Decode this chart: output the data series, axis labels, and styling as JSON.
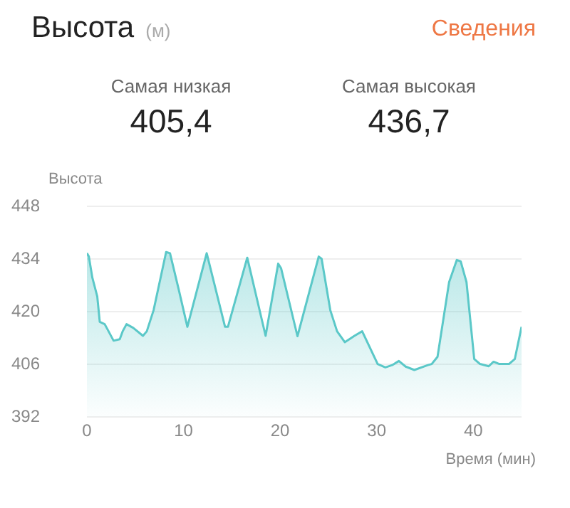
{
  "chart_data": {
    "type": "area",
    "title": "Высота",
    "subtitle": "(м)",
    "ylabel": "Высота",
    "xlabel": "Время (мин)",
    "annotations": [
      "Сведения",
      "Самая низкая",
      "405,4",
      "Самая высокая",
      "436,7"
    ],
    "x": [
      0,
      0.2,
      0.56,
      1.07,
      1.33,
      1.84,
      2.24,
      2.76,
      3.4,
      3.7,
      4.1,
      4.8,
      5.8,
      6.2,
      6.9,
      8.2,
      8.6,
      9.5,
      10.4,
      12.4,
      14.3,
      14.6,
      16.6,
      18.5,
      19.8,
      20.1,
      21.8,
      24.0,
      24.3,
      25.2,
      25.9,
      26.7,
      27.7,
      28.5,
      30.1,
      30.9,
      31.6,
      32.3,
      33.0,
      33.9,
      35.3,
      35.7,
      36.3,
      37.5,
      38.3,
      38.7,
      39.3,
      40.1,
      40.7,
      41.6,
      42.1,
      42.7,
      43.7,
      44.3,
      45
    ],
    "values": [
      435.6,
      434.7,
      429.1,
      424.1,
      417.3,
      416.7,
      414.8,
      412.3,
      412.7,
      414.8,
      416.7,
      415.7,
      413.6,
      414.8,
      420.4,
      435.9,
      435.6,
      426,
      416,
      435.6,
      416,
      416,
      434.4,
      413.6,
      432.8,
      431.6,
      413.5,
      434.7,
      434.1,
      420.4,
      414.8,
      411.9,
      413.6,
      414.8,
      406.1,
      405.2,
      405.8,
      406.9,
      405.4,
      404.5,
      405.8,
      406.1,
      408,
      427.9,
      433.8,
      433.4,
      427.9,
      407.4,
      406.1,
      405.5,
      406.7,
      406.1,
      406.1,
      407.4,
      416
    ],
    "color": "#5bc8c8",
    "xlim": [
      0,
      45
    ],
    "xticks": [
      0,
      10,
      20,
      30,
      40
    ],
    "ylim": [
      392,
      448
    ],
    "yticks": [
      392,
      406,
      420,
      434,
      448
    ],
    "grid": "y",
    "marker": "none",
    "line_style": "solid",
    "legend": false
  }
}
